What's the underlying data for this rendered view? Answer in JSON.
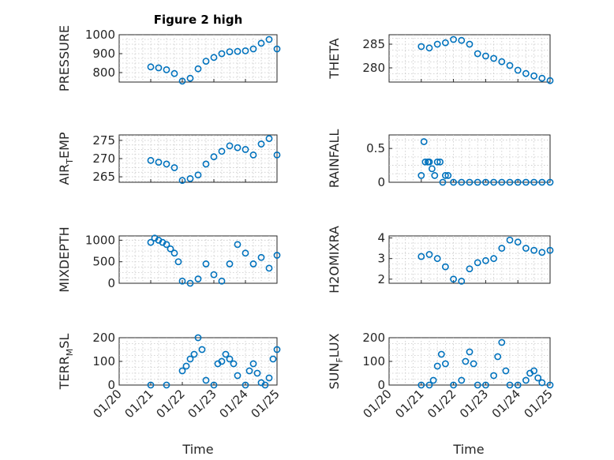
{
  "figure_title": "Figure 2 high",
  "xlabel": "Time",
  "x_ticks": [
    "01/20",
    "01/21",
    "01/22",
    "01/23",
    "01/24",
    "01/25"
  ],
  "marker_color": "#0072BD",
  "chart_data": [
    {
      "type": "scatter",
      "id": "pressure",
      "ylabel": "PRESSURE",
      "title": "Figure 2 high",
      "xlim": [
        "01/20",
        "01/25"
      ],
      "ylim": [
        750,
        1000
      ],
      "yticks": [
        800,
        900,
        1000
      ],
      "x": [
        "01/21 00:00",
        "01/21 06:00",
        "01/21 12:00",
        "01/21 18:00",
        "01/22 00:00",
        "01/22 06:00",
        "01/22 12:00",
        "01/22 18:00",
        "01/23 00:00",
        "01/23 06:00",
        "01/23 12:00",
        "01/23 18:00",
        "01/24 00:00",
        "01/24 06:00",
        "01/24 12:00",
        "01/24 18:00",
        "01/25 00:00"
      ],
      "y": [
        830,
        825,
        815,
        795,
        755,
        770,
        820,
        860,
        880,
        900,
        910,
        912,
        915,
        925,
        955,
        975,
        925
      ]
    },
    {
      "type": "scatter",
      "id": "theta",
      "ylabel": "THETA",
      "xlim": [
        "01/20",
        "01/25"
      ],
      "ylim": [
        277,
        287
      ],
      "yticks": [
        280,
        285
      ],
      "x": [
        "01/21 00:00",
        "01/21 06:00",
        "01/21 12:00",
        "01/21 18:00",
        "01/22 00:00",
        "01/22 06:00",
        "01/22 12:00",
        "01/22 18:00",
        "01/23 00:00",
        "01/23 06:00",
        "01/23 12:00",
        "01/23 18:00",
        "01/24 00:00",
        "01/24 06:00",
        "01/24 12:00",
        "01/24 18:00",
        "01/25 00:00"
      ],
      "y": [
        284.5,
        284.2,
        285.0,
        285.3,
        286.0,
        285.8,
        285.0,
        283.0,
        282.5,
        282.0,
        281.3,
        280.5,
        279.5,
        278.8,
        278.3,
        277.8,
        277.3
      ]
    },
    {
      "type": "scatter",
      "id": "air_temp",
      "ylabel_main": "AIR",
      "ylabel_sub": "T",
      "ylabel_rest": "EMP",
      "xlim": [
        "01/20",
        "01/25"
      ],
      "ylim": [
        263.5,
        276.5
      ],
      "yticks": [
        265,
        270,
        275
      ],
      "x": [
        "01/21 00:00",
        "01/21 06:00",
        "01/21 12:00",
        "01/21 18:00",
        "01/22 00:00",
        "01/22 06:00",
        "01/22 12:00",
        "01/22 18:00",
        "01/23 00:00",
        "01/23 06:00",
        "01/23 12:00",
        "01/23 18:00",
        "01/24 00:00",
        "01/24 06:00",
        "01/24 12:00",
        "01/24 18:00",
        "01/25 00:00"
      ],
      "y": [
        269.5,
        269.0,
        268.5,
        267.5,
        264.0,
        264.5,
        265.5,
        268.5,
        270.5,
        272.0,
        273.5,
        273.0,
        272.5,
        271.0,
        274.0,
        275.5,
        271.0
      ]
    },
    {
      "type": "scatter",
      "id": "rainfall",
      "ylabel": "RAINFALL",
      "xlim": [
        "01/20",
        "01/25"
      ],
      "ylim": [
        0,
        0.7
      ],
      "yticks": [
        0,
        0.5
      ],
      "x": [
        "01/21 00:00",
        "01/21 02:00",
        "01/21 03:00",
        "01/21 05:00",
        "01/21 06:00",
        "01/21 08:00",
        "01/21 10:00",
        "01/21 12:00",
        "01/21 14:00",
        "01/21 16:00",
        "01/21 18:00",
        "01/21 20:00",
        "01/22 00:00",
        "01/22 06:00",
        "01/22 12:00",
        "01/22 18:00",
        "01/23 00:00",
        "01/23 06:00",
        "01/23 12:00",
        "01/23 18:00",
        "01/24 00:00",
        "01/24 06:00",
        "01/24 12:00",
        "01/24 18:00",
        "01/25 00:00"
      ],
      "y": [
        0.1,
        0.6,
        0.3,
        0.3,
        0.3,
        0.2,
        0.1,
        0.3,
        0.3,
        0.0,
        0.1,
        0.1,
        0,
        0,
        0,
        0,
        0,
        0,
        0,
        0,
        0,
        0,
        0,
        0,
        0
      ]
    },
    {
      "type": "scatter",
      "id": "mixdepth",
      "ylabel": "MIXDEPTH",
      "xlim": [
        "01/20",
        "01/25"
      ],
      "ylim": [
        0,
        1100
      ],
      "yticks": [
        0,
        500,
        1000
      ],
      "x": [
        "01/21 00:00",
        "01/21 03:00",
        "01/21 06:00",
        "01/21 09:00",
        "01/21 12:00",
        "01/21 15:00",
        "01/21 18:00",
        "01/21 21:00",
        "01/22 00:00",
        "01/22 06:00",
        "01/22 12:00",
        "01/22 18:00",
        "01/23 00:00",
        "01/23 06:00",
        "01/23 12:00",
        "01/23 18:00",
        "01/24 00:00",
        "01/24 06:00",
        "01/24 12:00",
        "01/24 18:00",
        "01/25 00:00"
      ],
      "y": [
        950,
        1050,
        1000,
        950,
        900,
        800,
        700,
        500,
        50,
        0,
        100,
        450,
        200,
        50,
        450,
        900,
        700,
        450,
        600,
        350,
        650
      ]
    },
    {
      "type": "scatter",
      "id": "h2omixra",
      "ylabel": "H2OMIXRA",
      "xlim": [
        "01/20",
        "01/25"
      ],
      "ylim": [
        1.8,
        4.1
      ],
      "yticks": [
        2,
        3,
        4
      ],
      "x": [
        "01/21 00:00",
        "01/21 06:00",
        "01/21 12:00",
        "01/21 18:00",
        "01/22 00:00",
        "01/22 06:00",
        "01/22 12:00",
        "01/22 18:00",
        "01/23 00:00",
        "01/23 06:00",
        "01/23 12:00",
        "01/23 18:00",
        "01/24 00:00",
        "01/24 06:00",
        "01/24 12:00",
        "01/24 18:00",
        "01/25 00:00"
      ],
      "y": [
        3.1,
        3.2,
        3.0,
        2.6,
        2.0,
        1.9,
        2.5,
        2.8,
        2.9,
        3.0,
        3.5,
        3.9,
        3.8,
        3.5,
        3.4,
        3.3,
        3.4
      ]
    },
    {
      "type": "scatter",
      "id": "terr_msl",
      "ylabel_main": "TERR",
      "ylabel_sub": "M",
      "ylabel_rest": "SL",
      "xlim": [
        "01/20",
        "01/25"
      ],
      "ylim": [
        0,
        200
      ],
      "yticks": [
        0,
        100,
        200
      ],
      "x": [
        "01/21 00:00",
        "01/21 12:00",
        "01/22 00:00",
        "01/22 03:00",
        "01/22 06:00",
        "01/22 09:00",
        "01/22 12:00",
        "01/22 15:00",
        "01/22 18:00",
        "01/23 00:00",
        "01/23 03:00",
        "01/23 06:00",
        "01/23 09:00",
        "01/23 12:00",
        "01/23 15:00",
        "01/23 18:00",
        "01/24 00:00",
        "01/24 03:00",
        "01/24 06:00",
        "01/24 09:00",
        "01/24 12:00",
        "01/24 15:00",
        "01/24 18:00",
        "01/24 21:00",
        "01/25 00:00"
      ],
      "y": [
        0,
        0,
        60,
        80,
        110,
        130,
        200,
        150,
        20,
        0,
        90,
        100,
        130,
        110,
        90,
        40,
        0,
        60,
        90,
        50,
        10,
        0,
        30,
        110,
        150
      ]
    },
    {
      "type": "scatter",
      "id": "sun_flux",
      "ylabel_main": "SUN",
      "ylabel_sub": "F",
      "ylabel_rest": "LUX",
      "xlim": [
        "01/20",
        "01/25"
      ],
      "ylim": [
        0,
        200
      ],
      "yticks": [
        0,
        100,
        200
      ],
      "x": [
        "01/21 00:00",
        "01/21 06:00",
        "01/21 09:00",
        "01/21 12:00",
        "01/21 15:00",
        "01/21 18:00",
        "01/22 00:00",
        "01/22 06:00",
        "01/22 09:00",
        "01/22 12:00",
        "01/22 15:00",
        "01/22 18:00",
        "01/23 00:00",
        "01/23 06:00",
        "01/23 09:00",
        "01/23 12:00",
        "01/23 15:00",
        "01/23 18:00",
        "01/24 00:00",
        "01/24 06:00",
        "01/24 09:00",
        "01/24 12:00",
        "01/24 15:00",
        "01/24 18:00",
        "01/25 00:00"
      ],
      "y": [
        0,
        0,
        20,
        80,
        130,
        90,
        0,
        20,
        100,
        140,
        90,
        0,
        0,
        40,
        120,
        180,
        60,
        0,
        0,
        20,
        50,
        60,
        30,
        10,
        0
      ]
    }
  ]
}
